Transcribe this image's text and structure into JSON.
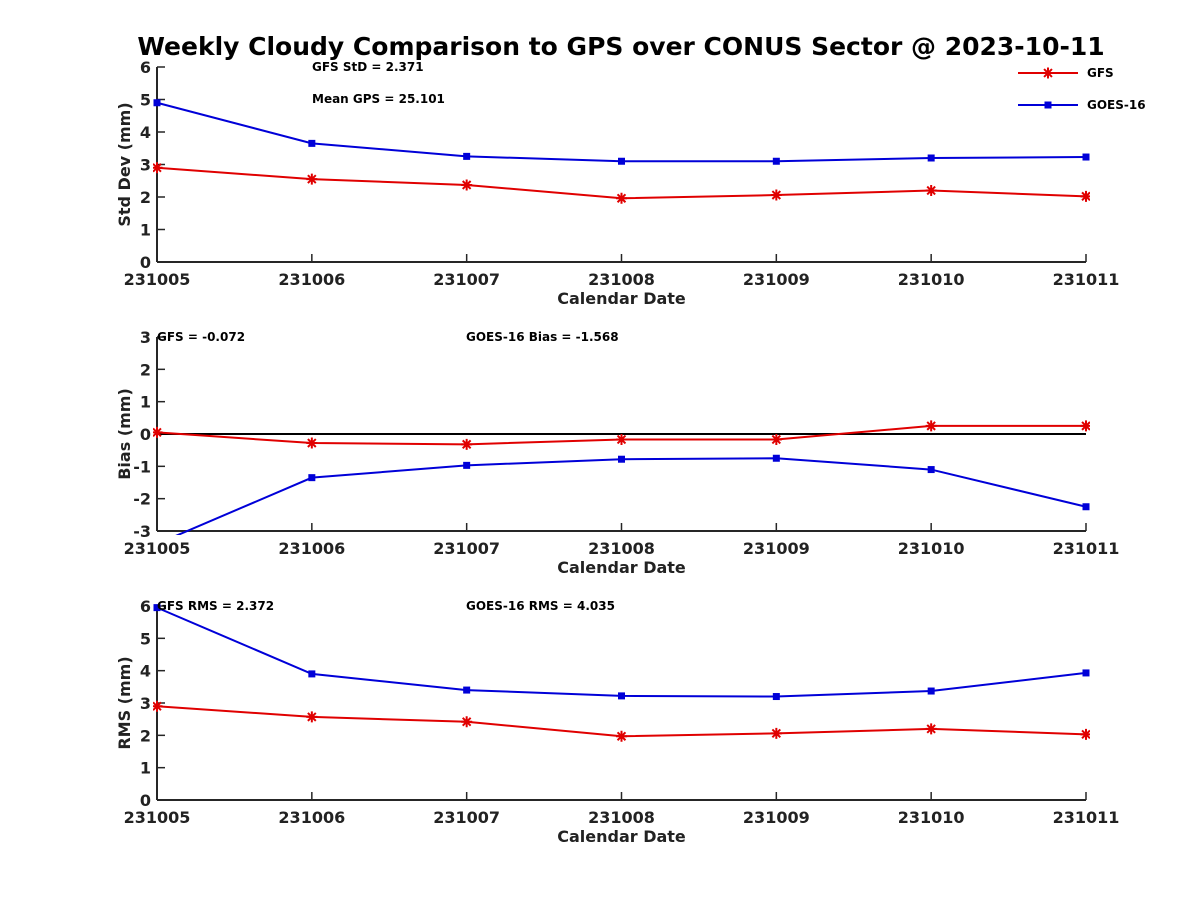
{
  "title": "Weekly Cloudy Comparison to GPS over CONUS Sector @ 2023-10-11",
  "legend": [
    {
      "name": "GFS",
      "color": "#e00000",
      "marker": "asterisk"
    },
    {
      "name": "GOES-16",
      "color": "#0000d8",
      "marker": "square"
    }
  ],
  "chart_data": [
    {
      "type": "line",
      "categories": [
        "231005",
        "231006",
        "231007",
        "231008",
        "231009",
        "231010",
        "231011"
      ],
      "xlabel": "Calendar Date",
      "ylabel": "Std Dev (mm)",
      "ylim": [
        0,
        6
      ],
      "yticks": [
        "0",
        "1",
        "2",
        "3",
        "4",
        "5",
        "6"
      ],
      "annotations": [
        "GFS StD = 2.371",
        "Mean GPS = 25.101"
      ],
      "series": [
        {
          "name": "GFS",
          "values": [
            2.9,
            2.55,
            2.37,
            1.96,
            2.06,
            2.2,
            2.02
          ]
        },
        {
          "name": "GOES-16",
          "values": [
            4.9,
            3.65,
            3.25,
            3.1,
            3.1,
            3.2,
            3.23
          ]
        }
      ]
    },
    {
      "type": "line",
      "categories": [
        "231005",
        "231006",
        "231007",
        "231008",
        "231009",
        "231010",
        "231011"
      ],
      "xlabel": "Calendar Date",
      "ylabel": "Bias (mm)",
      "ylim": [
        -3,
        3
      ],
      "yticks": [
        "-3",
        "-2",
        "-1",
        "0",
        "1",
        "2",
        "3"
      ],
      "zero_line": true,
      "annotations": [
        "GFS = -0.072",
        "GOES-16 Bias  = -1.568"
      ],
      "series": [
        {
          "name": "GFS",
          "values": [
            0.05,
            -0.28,
            -0.32,
            -0.17,
            -0.17,
            0.25,
            0.25
          ]
        },
        {
          "name": "GOES-16",
          "values": [
            -3.4,
            -1.35,
            -0.97,
            -0.78,
            -0.75,
            -1.1,
            -2.25
          ]
        }
      ]
    },
    {
      "type": "line",
      "categories": [
        "231005",
        "231006",
        "231007",
        "231008",
        "231009",
        "231010",
        "231011"
      ],
      "xlabel": "Calendar Date",
      "ylabel": "RMS (mm)",
      "ylim": [
        0,
        6
      ],
      "yticks": [
        "0",
        "1",
        "2",
        "3",
        "4",
        "5",
        "6"
      ],
      "annotations": [
        "GFS RMS = 2.372",
        "GOES-16 RMS = 4.035"
      ],
      "series": [
        {
          "name": "GFS",
          "values": [
            2.9,
            2.57,
            2.42,
            1.97,
            2.06,
            2.2,
            2.03
          ]
        },
        {
          "name": "GOES-16",
          "values": [
            5.95,
            3.9,
            3.4,
            3.22,
            3.2,
            3.37,
            3.93
          ]
        }
      ]
    }
  ]
}
